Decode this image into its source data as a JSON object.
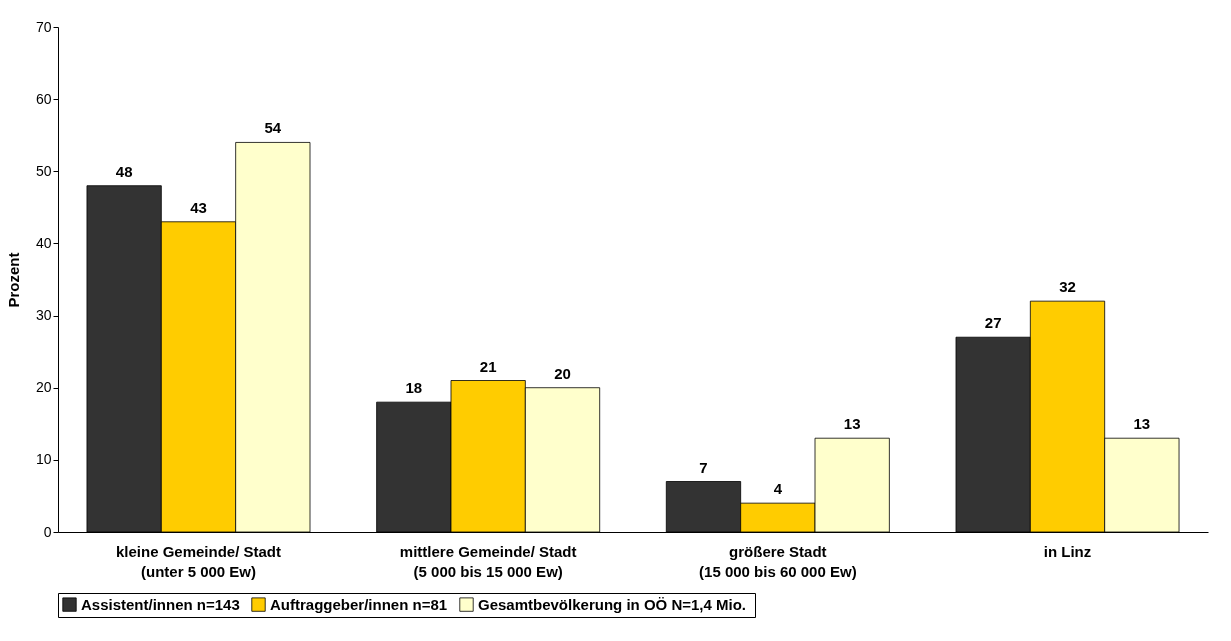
{
  "chart_data": {
    "type": "bar",
    "ylabel": "Prozent",
    "categories": [
      "kleine Gemeinde/ Stadt\n(unter 5 000 Ew)",
      "mittlere Gemeinde/ Stadt\n(5 000 bis 15 000 Ew)",
      "größere Stadt\n(15 000 bis 60 000 Ew)",
      "in Linz"
    ],
    "series": [
      {
        "name": "Assistent/innen n=143",
        "color": "#333333",
        "values": [
          48,
          18,
          7,
          27
        ]
      },
      {
        "name": "Auftraggeber/innen n=81",
        "color": "#ffcc00",
        "values": [
          43,
          21,
          4,
          32
        ]
      },
      {
        "name": "Gesamtbevölkerung in OÖ  N=1,4 Mio.",
        "color": "#ffffcc",
        "values": [
          54,
          20,
          13,
          13
        ]
      }
    ],
    "ylim": [
      0,
      70
    ],
    "yticks": [
      0,
      10,
      20,
      30,
      40,
      50,
      60,
      70
    ],
    "grid": false,
    "legend": "bottom",
    "data_labels": true
  }
}
